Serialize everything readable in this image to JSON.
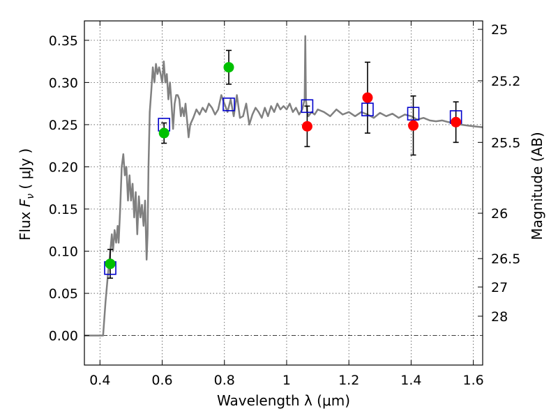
{
  "chart_data": {
    "type": "scatter",
    "xlabel": "Wavelength  λ (μm)",
    "ylabel": "Flux  F_ν  ( μJy )",
    "ylabel_parts": {
      "prefix": "Flux  ",
      "var": "F",
      "sub": "ν",
      "suffix": "  ( μJy )"
    },
    "y2label": "Magnitude (AB)",
    "xlim": [
      0.35,
      1.63
    ],
    "ylim": [
      -0.035,
      0.373
    ],
    "xticks": [
      0.4,
      0.6,
      0.8,
      1.0,
      1.2,
      1.4,
      1.6
    ],
    "xtick_labels": [
      "0.4",
      "0.6",
      "0.8",
      "1",
      "1.2",
      "1.4",
      "1.6"
    ],
    "yticks": [
      0.0,
      0.05,
      0.1,
      0.15,
      0.2,
      0.25,
      0.3,
      0.35
    ],
    "ytick_labels": [
      "0.00",
      "0.05",
      "0.10",
      "0.15",
      "0.20",
      "0.25",
      "0.30",
      "0.35"
    ],
    "mag_ticks": [
      {
        "label": "25",
        "flux": 0.363
      },
      {
        "label": "25.2",
        "flux": 0.302
      },
      {
        "label": "25.5",
        "flux": 0.229
      },
      {
        "label": "26",
        "flux": 0.145
      },
      {
        "label": "26.5",
        "flux": 0.0912
      },
      {
        "label": "27",
        "flux": 0.0575
      },
      {
        "label": "28",
        "flux": 0.0229
      }
    ],
    "grid": true,
    "zero_line": 0.0,
    "colors": {
      "model": "#808080",
      "green": "#00c000",
      "red": "#ff0000",
      "box": "#0000cc",
      "error": "#000000"
    },
    "model_sed": {
      "x": [
        0.35,
        0.41,
        0.418,
        0.425,
        0.432,
        0.438,
        0.442,
        0.447,
        0.452,
        0.457,
        0.46,
        0.465,
        0.47,
        0.475,
        0.48,
        0.485,
        0.49,
        0.495,
        0.5,
        0.505,
        0.51,
        0.515,
        0.52,
        0.525,
        0.53,
        0.535,
        0.54,
        0.545,
        0.55,
        0.553,
        0.556,
        0.56,
        0.565,
        0.57,
        0.575,
        0.58,
        0.585,
        0.59,
        0.595,
        0.6,
        0.605,
        0.61,
        0.615,
        0.62,
        0.625,
        0.63,
        0.635,
        0.64,
        0.645,
        0.65,
        0.655,
        0.66,
        0.665,
        0.67,
        0.675,
        0.68,
        0.685,
        0.69,
        0.7,
        0.71,
        0.72,
        0.73,
        0.74,
        0.75,
        0.76,
        0.77,
        0.78,
        0.79,
        0.8,
        0.81,
        0.82,
        0.83,
        0.84,
        0.85,
        0.86,
        0.87,
        0.88,
        0.89,
        0.9,
        0.91,
        0.92,
        0.93,
        0.94,
        0.95,
        0.96,
        0.97,
        0.98,
        0.99,
        1.0,
        1.01,
        1.02,
        1.03,
        1.04,
        1.05,
        1.058,
        1.06,
        1.062,
        1.066,
        1.07,
        1.08,
        1.09,
        1.1,
        1.12,
        1.14,
        1.16,
        1.18,
        1.2,
        1.22,
        1.24,
        1.26,
        1.28,
        1.3,
        1.32,
        1.34,
        1.36,
        1.38,
        1.4,
        1.42,
        1.44,
        1.46,
        1.48,
        1.5,
        1.52,
        1.54,
        1.56,
        1.58,
        1.6,
        1.63
      ],
      "y": [
        0.0,
        0.0,
        0.04,
        0.07,
        0.095,
        0.12,
        0.1,
        0.125,
        0.11,
        0.13,
        0.11,
        0.15,
        0.2,
        0.215,
        0.19,
        0.2,
        0.16,
        0.19,
        0.16,
        0.18,
        0.14,
        0.17,
        0.12,
        0.165,
        0.14,
        0.155,
        0.13,
        0.16,
        0.09,
        0.12,
        0.2,
        0.265,
        0.29,
        0.318,
        0.3,
        0.322,
        0.31,
        0.318,
        0.31,
        0.3,
        0.325,
        0.3,
        0.31,
        0.28,
        0.3,
        0.275,
        0.245,
        0.275,
        0.285,
        0.285,
        0.28,
        0.26,
        0.27,
        0.26,
        0.275,
        0.255,
        0.235,
        0.25,
        0.258,
        0.268,
        0.262,
        0.27,
        0.265,
        0.275,
        0.27,
        0.262,
        0.268,
        0.285,
        0.275,
        0.265,
        0.28,
        0.26,
        0.285,
        0.258,
        0.26,
        0.275,
        0.25,
        0.262,
        0.27,
        0.265,
        0.258,
        0.27,
        0.26,
        0.272,
        0.265,
        0.275,
        0.268,
        0.272,
        0.268,
        0.275,
        0.265,
        0.27,
        0.262,
        0.268,
        0.28,
        0.355,
        0.28,
        0.265,
        0.26,
        0.265,
        0.262,
        0.268,
        0.265,
        0.26,
        0.268,
        0.262,
        0.265,
        0.26,
        0.265,
        0.262,
        0.258,
        0.264,
        0.26,
        0.263,
        0.258,
        0.262,
        0.26,
        0.256,
        0.258,
        0.255,
        0.254,
        0.255,
        0.253,
        0.252,
        0.25,
        0.249,
        0.248,
        0.247
      ]
    },
    "observed_green": [
      {
        "x": 0.433,
        "y": 0.085,
        "err": 0.017
      },
      {
        "x": 0.606,
        "y": 0.24,
        "err": 0.012
      },
      {
        "x": 0.814,
        "y": 0.318,
        "err": 0.02
      }
    ],
    "observed_red": [
      {
        "x": 1.066,
        "y": 0.248,
        "err": 0.024
      },
      {
        "x": 1.26,
        "y": 0.282,
        "err": 0.042
      },
      {
        "x": 1.407,
        "y": 0.249,
        "err": 0.035
      },
      {
        "x": 1.544,
        "y": 0.253,
        "err": 0.024
      }
    ],
    "model_photometry": [
      {
        "x": 0.433,
        "y": 0.08
      },
      {
        "x": 0.606,
        "y": 0.25
      },
      {
        "x": 0.814,
        "y": 0.274
      },
      {
        "x": 1.066,
        "y": 0.272
      },
      {
        "x": 1.26,
        "y": 0.268
      },
      {
        "x": 1.407,
        "y": 0.263
      },
      {
        "x": 1.544,
        "y": 0.259
      }
    ]
  }
}
